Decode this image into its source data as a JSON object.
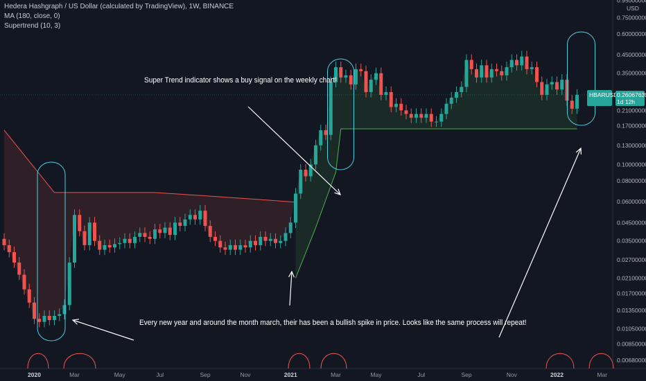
{
  "header": {
    "symbol_line": "Hedera Hashgraph / US Dollar (calculated by TradingView), 1W, BINANCE",
    "ma_line": "MA (180, close, 0)",
    "supertrend_line": "Supertrend (10, 3)"
  },
  "annotations": {
    "top": "Super Trend indicator shows a buy signal on the weekly chart!",
    "bottom": "Every new year and around the month march, their has been a bullish spike in price. Looks like the same process will repeat!"
  },
  "price_tag": {
    "symbol": "HBARUSD",
    "price": "0.26067639",
    "countdown": "1d 12h"
  },
  "colors": {
    "background": "#131722",
    "up": "#26a69a",
    "down": "#ef5350",
    "supertrend_up": "#4caf50",
    "supertrend_down": "#ef5350",
    "annotation": "#ffffff",
    "circle": "#4dd0e1"
  },
  "chart_data": {
    "type": "candlestick",
    "scale": "log",
    "ylim": [
      0.006,
      0.95
    ],
    "ylabel": "USD",
    "yticks": [
      "0.95000000",
      "0.75000000",
      "0.60000000",
      "0.45000000",
      "0.35000000",
      "0.21000000",
      "0.17000000",
      "0.13000000",
      "0.10000000",
      "0.08000000",
      "0.06000000",
      "0.04500000",
      "0.03500000",
      "0.02700000",
      "0.02100000",
      "0.01700000",
      "0.01350000",
      "0.01050000",
      "0.00850000",
      "0.00680000"
    ],
    "ytick_values": [
      0.95,
      0.75,
      0.6,
      0.45,
      0.35,
      0.21,
      0.17,
      0.13,
      0.1,
      0.08,
      0.06,
      0.045,
      0.035,
      0.027,
      0.021,
      0.017,
      0.0135,
      0.0105,
      0.0085,
      0.0068
    ],
    "xticks": [
      {
        "label": "2020",
        "week": 6
      },
      {
        "label": "Mar",
        "week": 14
      },
      {
        "label": "May",
        "week": 23
      },
      {
        "label": "Jul",
        "week": 31
      },
      {
        "label": "Sep",
        "week": 40
      },
      {
        "label": "Nov",
        "week": 48
      },
      {
        "label": "2021",
        "week": 57
      },
      {
        "label": "Mar",
        "week": 66
      },
      {
        "label": "May",
        "week": 74
      },
      {
        "label": "Jul",
        "week": 83
      },
      {
        "label": "Sep",
        "week": 92
      },
      {
        "label": "Nov",
        "week": 101
      },
      {
        "label": "2022",
        "week": 110
      },
      {
        "label": "Mar",
        "week": 119
      }
    ],
    "closes": [
      0.033,
      0.03,
      0.026,
      0.022,
      0.018,
      0.015,
      0.012,
      0.0115,
      0.0125,
      0.0118,
      0.0125,
      0.0128,
      0.0145,
      0.026,
      0.05,
      0.04,
      0.033,
      0.045,
      0.035,
      0.031,
      0.033,
      0.032,
      0.0335,
      0.034,
      0.036,
      0.034,
      0.037,
      0.039,
      0.037,
      0.036,
      0.041,
      0.039,
      0.042,
      0.038,
      0.045,
      0.043,
      0.047,
      0.05,
      0.047,
      0.053,
      0.043,
      0.037,
      0.035,
      0.032,
      0.031,
      0.033,
      0.031,
      0.033,
      0.032,
      0.035,
      0.033,
      0.037,
      0.035,
      0.036,
      0.034,
      0.035,
      0.039,
      0.045,
      0.067,
      0.093,
      0.085,
      0.1,
      0.13,
      0.16,
      0.15,
      0.31,
      0.38,
      0.33,
      0.34,
      0.3,
      0.37,
      0.36,
      0.27,
      0.32,
      0.35,
      0.26,
      0.27,
      0.22,
      0.23,
      0.21,
      0.2,
      0.19,
      0.2,
      0.19,
      0.2,
      0.18,
      0.18,
      0.2,
      0.23,
      0.25,
      0.27,
      0.29,
      0.42,
      0.37,
      0.33,
      0.39,
      0.33,
      0.37,
      0.36,
      0.34,
      0.38,
      0.42,
      0.39,
      0.44,
      0.37,
      0.38,
      0.31,
      0.26,
      0.3,
      0.31,
      0.28,
      0.32,
      0.24,
      0.215,
      0.26
    ],
    "supertrend": {
      "down_start_week": 0,
      "down_end_week": 58,
      "up_start_week": 58,
      "up_end_week": 114,
      "note_levels": {
        "down_plateau": 0.068,
        "up_plateau": 0.163
      }
    }
  }
}
